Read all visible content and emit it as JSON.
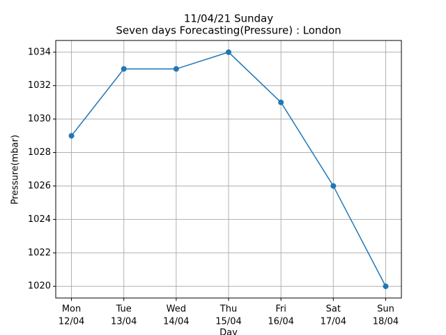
{
  "chart_data": {
    "type": "line",
    "title": "11/04/21 Sunday",
    "subtitle": "Seven days Forecasting(Pressure) : London",
    "x_label": "Day",
    "y_label": "Pressure(mbar)",
    "categories": [
      "Mon",
      "Tue",
      "Wed",
      "Thu",
      "Fri",
      "Sat",
      "Sun"
    ],
    "dates": [
      "12/04",
      "13/04",
      "14/04",
      "15/04",
      "16/04",
      "17/04",
      "18/04"
    ],
    "values": [
      1029,
      1033,
      1033,
      1034,
      1031,
      1026,
      1020
    ],
    "color": "#1f77b4",
    "ylim": [
      1019.3,
      1034.7
    ],
    "yticks": [
      1020,
      1022,
      1024,
      1026,
      1028,
      1030,
      1032,
      1034
    ],
    "grid": true
  }
}
